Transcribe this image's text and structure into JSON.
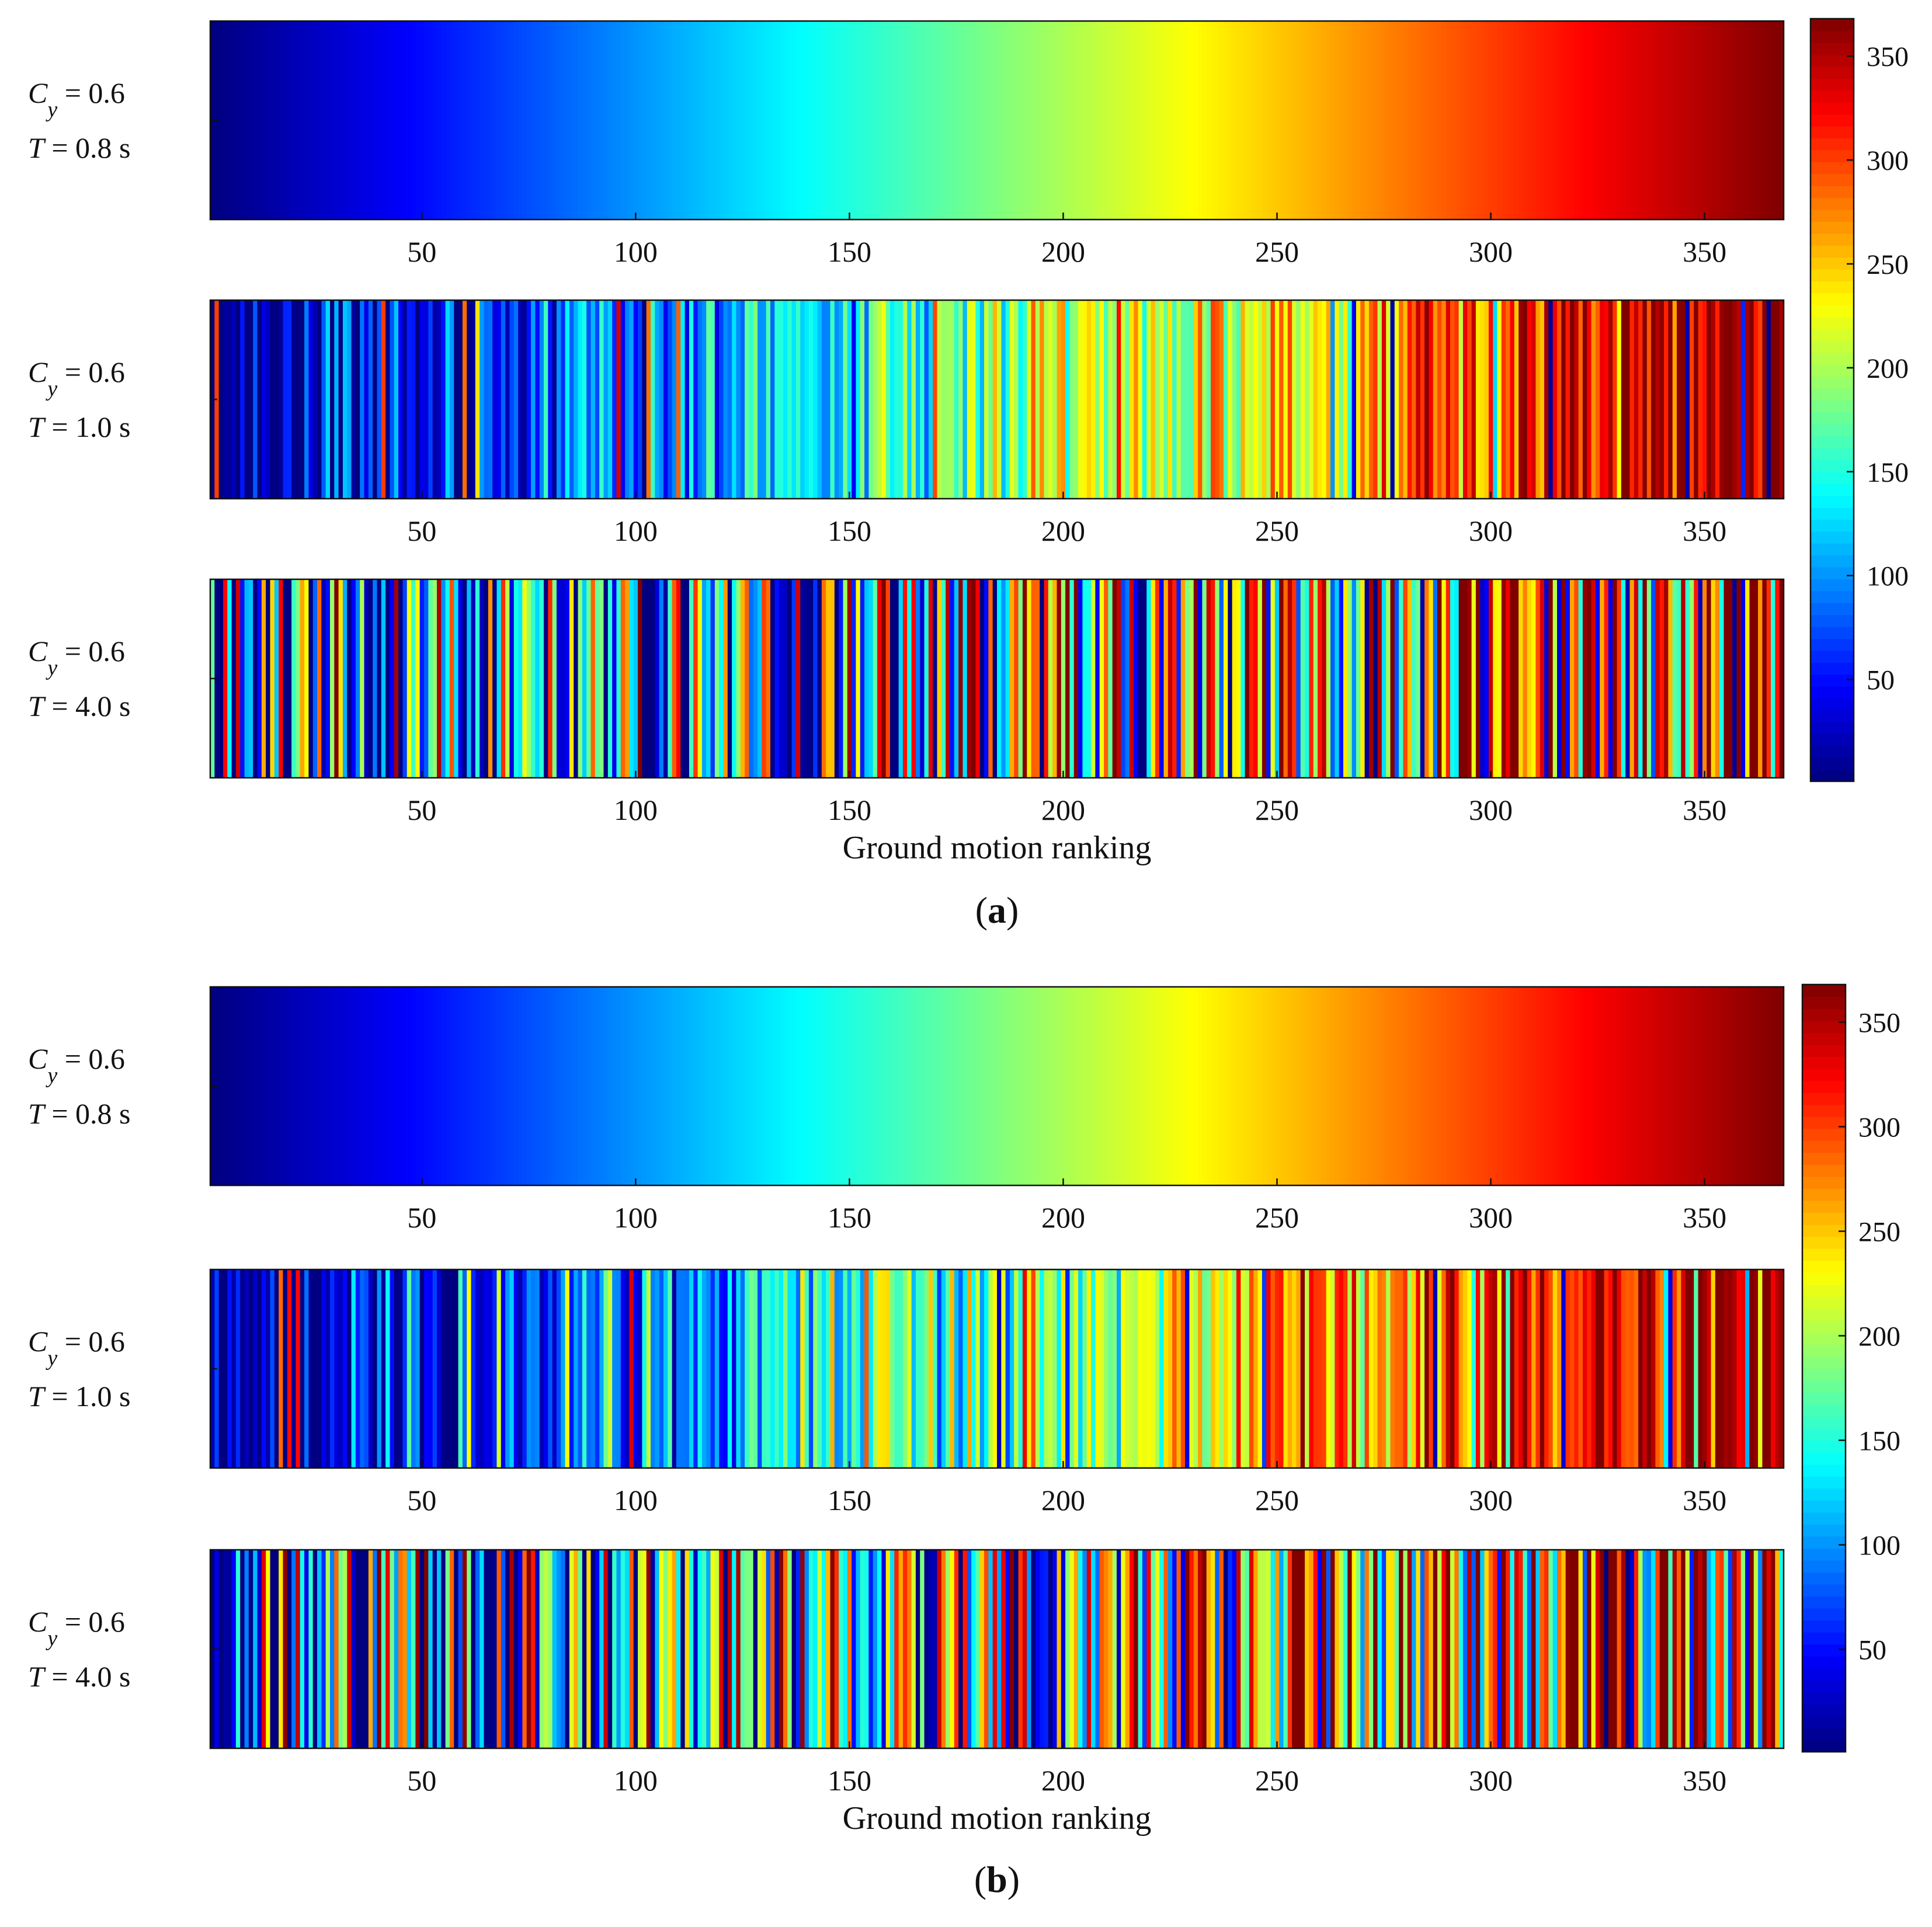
{
  "chart_data": [
    {
      "id": "a",
      "type": "heatmap",
      "panel_label": "a",
      "xlabel": "Ground motion ranking",
      "xlim": [
        0.5,
        368.5
      ],
      "n_ground_motions": 368,
      "x_ticks": [
        50,
        100,
        150,
        200,
        250,
        300,
        350
      ],
      "colormap": "jet",
      "colorbar": {
        "range": [
          1,
          368
        ],
        "ticks": [
          50,
          100,
          150,
          200,
          250,
          300,
          350
        ]
      },
      "rows": [
        {
          "cy_sym": "C",
          "cy_sub": "y",
          "cy_value": "= 0.6",
          "t_sym": "T",
          "t_value": "= 0.8 s",
          "pattern": "sorted"
        },
        {
          "cy_sym": "C",
          "cy_sub": "y",
          "cy_value": "= 0.6",
          "t_sym": "T",
          "t_value": "= 1.0 s",
          "pattern": "moderately shuffled"
        },
        {
          "cy_sym": "C",
          "cy_sub": "y",
          "cy_value": "= 0.6",
          "t_sym": "T",
          "t_value": "= 4.0 s",
          "pattern": "strongly shuffled"
        }
      ]
    },
    {
      "id": "b",
      "type": "heatmap",
      "panel_label": "b",
      "xlabel": "Ground motion ranking",
      "xlim": [
        0.5,
        368.5
      ],
      "n_ground_motions": 368,
      "x_ticks": [
        50,
        100,
        150,
        200,
        250,
        300,
        350
      ],
      "colormap": "jet",
      "colorbar": {
        "range": [
          1,
          368
        ],
        "ticks": [
          50,
          100,
          150,
          200,
          250,
          300,
          350
        ]
      },
      "rows": [
        {
          "cy_sym": "C",
          "cy_sub": "y",
          "cy_value": "= 0.6",
          "t_sym": "T",
          "t_value": "= 0.8 s",
          "pattern": "sorted"
        },
        {
          "cy_sym": "C",
          "cy_sub": "y",
          "cy_value": "= 0.6",
          "t_sym": "T",
          "t_value": "= 1.0 s",
          "pattern": "moderately shuffled"
        },
        {
          "cy_sym": "C",
          "cy_sub": "y",
          "cy_value": "= 0.6",
          "t_sym": "T",
          "t_value": "= 4.0 s",
          "pattern": "strongly shuffled"
        }
      ]
    }
  ]
}
